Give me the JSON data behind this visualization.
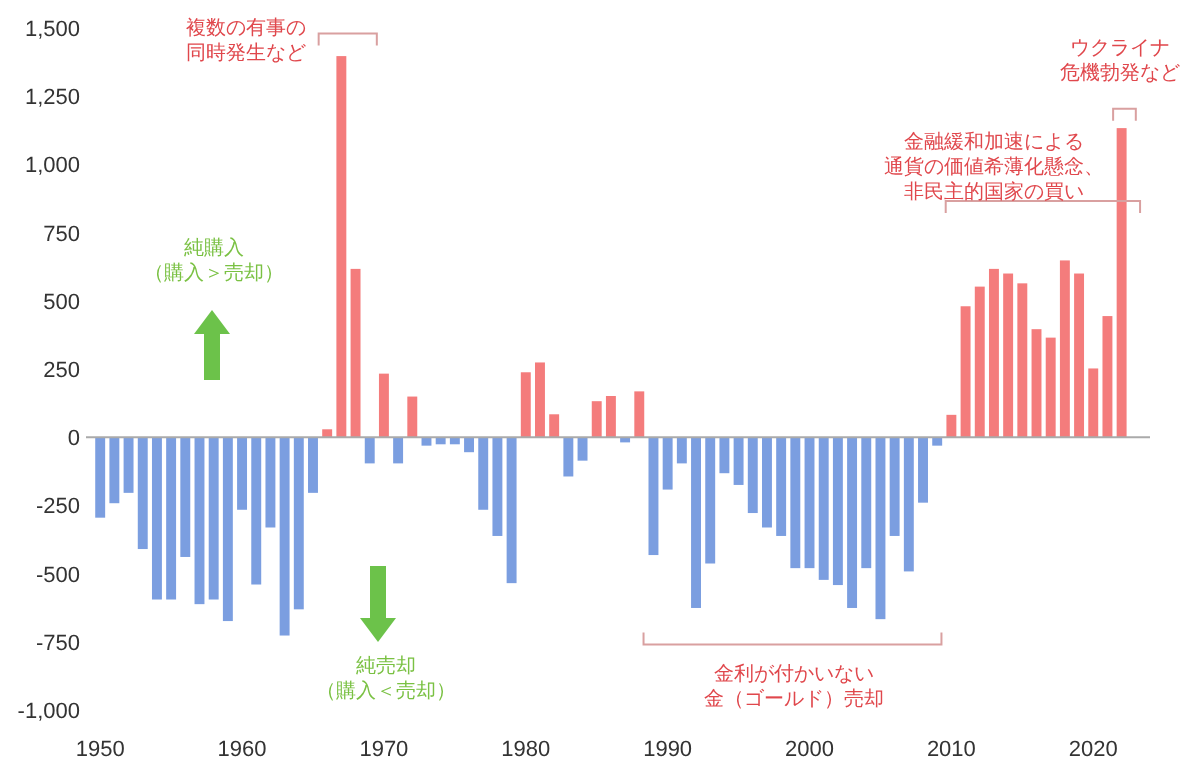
{
  "chart_data": {
    "type": "bar",
    "x": [
      1950,
      1951,
      1952,
      1953,
      1954,
      1955,
      1956,
      1957,
      1958,
      1959,
      1960,
      1961,
      1962,
      1963,
      1964,
      1965,
      1966,
      1967,
      1968,
      1969,
      1970,
      1971,
      1972,
      1973,
      1974,
      1975,
      1976,
      1977,
      1978,
      1979,
      1980,
      1981,
      1982,
      1983,
      1984,
      1985,
      1986,
      1987,
      1988,
      1989,
      1990,
      1991,
      1992,
      1993,
      1994,
      1995,
      1996,
      1997,
      1998,
      1999,
      2000,
      2001,
      2002,
      2003,
      2004,
      2005,
      2006,
      2007,
      2008,
      2009,
      2010,
      2011,
      2012,
      2013,
      2014,
      2015,
      2016,
      2017,
      2018,
      2019,
      2020,
      2021,
      2022
    ],
    "values": [
      -295,
      -242,
      -204,
      -410,
      -595,
      -595,
      -439,
      -612,
      -595,
      -674,
      -266,
      -540,
      -331,
      -727,
      -631,
      -204,
      29,
      1397,
      617,
      -96,
      233,
      -96,
      149,
      -31,
      -26,
      -26,
      -55,
      -266,
      -362,
      -535,
      238,
      274,
      84,
      -144,
      -86,
      132,
      151,
      -19,
      168,
      -432,
      -192,
      -96,
      -626,
      -463,
      -132,
      -175,
      -278,
      -331,
      -362,
      -480,
      -480,
      -523,
      -542,
      -626,
      -480,
      -667,
      -362,
      -492,
      -240,
      -31,
      82,
      480,
      552,
      617,
      600,
      564,
      396,
      365,
      648,
      600,
      252,
      444,
      1133
    ],
    "colors": [
      "#7b9ee0",
      "#7b9ee0",
      "#7b9ee0",
      "#7b9ee0",
      "#7b9ee0",
      "#7b9ee0",
      "#7b9ee0",
      "#7b9ee0",
      "#7b9ee0",
      "#7b9ee0",
      "#7b9ee0",
      "#7b9ee0",
      "#7b9ee0",
      "#7b9ee0",
      "#7b9ee0",
      "#7b9ee0",
      "#f47c7c",
      "#f47c7c",
      "#f47c7c",
      "#7b9ee0",
      "#f47c7c",
      "#7b9ee0",
      "#f47c7c",
      "#7b9ee0",
      "#7b9ee0",
      "#7b9ee0",
      "#7b9ee0",
      "#7b9ee0",
      "#7b9ee0",
      "#7b9ee0",
      "#f47c7c",
      "#f47c7c",
      "#f47c7c",
      "#7b9ee0",
      "#7b9ee0",
      "#f47c7c",
      "#f47c7c",
      "#7b9ee0",
      "#f47c7c",
      "#7b9ee0",
      "#7b9ee0",
      "#7b9ee0",
      "#7b9ee0",
      "#7b9ee0",
      "#7b9ee0",
      "#7b9ee0",
      "#7b9ee0",
      "#7b9ee0",
      "#7b9ee0",
      "#7b9ee0",
      "#7b9ee0",
      "#7b9ee0",
      "#7b9ee0",
      "#7b9ee0",
      "#7b9ee0",
      "#7b9ee0",
      "#7b9ee0",
      "#7b9ee0",
      "#7b9ee0",
      "#7b9ee0",
      "#f47c7c",
      "#f47c7c",
      "#f47c7c",
      "#f47c7c",
      "#f47c7c",
      "#f47c7c",
      "#f47c7c",
      "#f47c7c",
      "#f47c7c",
      "#f47c7c",
      "#f47c7c",
      "#f47c7c",
      "#f47c7c"
    ],
    "xlim": [
      1949,
      2024
    ],
    "xticks": [
      1950,
      1960,
      1970,
      1980,
      1990,
      2000,
      2010,
      2020
    ],
    "ylim": [
      -1000,
      1500
    ],
    "yticks": [
      {
        "value": -1000,
        "label": "-1,000"
      },
      {
        "value": -750,
        "label": "-750"
      },
      {
        "value": -500,
        "label": "-500"
      },
      {
        "value": -250,
        "label": "-250"
      },
      {
        "value": 0,
        "label": "0"
      },
      {
        "value": 250,
        "label": "250"
      },
      {
        "value": 500,
        "label": "500"
      },
      {
        "value": 750,
        "label": "750"
      },
      {
        "value": 1000,
        "label": "1,000"
      },
      {
        "value": 1250,
        "label": "1,250"
      },
      {
        "value": 1500,
        "label": "1,500"
      }
    ],
    "annotations": [
      "複数の有事の同時発生など",
      "純購入（購入＞売却）",
      "純売却（購入＜売却）",
      "金利が付かいない金（ゴールド）売却",
      "金融緩和加速による通貨の価値希薄化懸念、非民主的国家の買い",
      "ウクライナ危機勃発など"
    ]
  }
}
